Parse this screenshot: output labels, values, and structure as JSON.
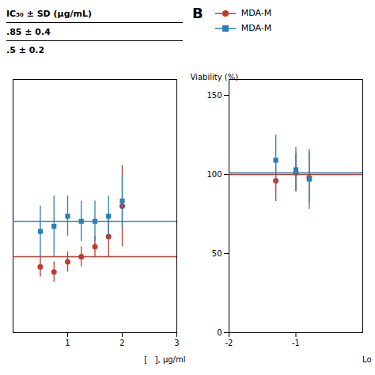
{
  "chart_data": [
    {
      "type": "scatter",
      "xlabel": "[   ], μg/ml",
      "xlim": [
        0,
        3
      ],
      "ylim": [
        0,
        50
      ],
      "xticks": [
        1,
        2,
        3
      ],
      "tick_labels": "x",
      "annotations": [
        "IC₅₀ ± SD (μg/mL)",
        ".85 ± 0.4",
        ".5 ± 0.2"
      ],
      "series": [
        {
          "color": "#c0392b",
          "marker": "circle",
          "x": [
            0.5,
            0.75,
            1.0,
            1.25,
            1.5,
            1.75,
            2.0
          ],
          "values": [
            13,
            12,
            14,
            15,
            17,
            19,
            25
          ],
          "errors": [
            2,
            2,
            2,
            2,
            2,
            4,
            8
          ],
          "fit": 15
        },
        {
          "color": "#2980b9",
          "marker": "square",
          "x": [
            0.5,
            0.75,
            1.0,
            1.25,
            1.5,
            1.75,
            2.0
          ],
          "values": [
            20,
            21,
            23,
            22,
            22,
            23,
            26
          ],
          "errors": [
            5,
            6,
            4,
            4,
            4,
            4,
            5
          ],
          "fit": 22
        }
      ]
    },
    {
      "type": "scatter",
      "xlabel": "Lo",
      "ylabel": "Viability (%)",
      "xlim": [
        -2,
        0
      ],
      "ylim": [
        0,
        160
      ],
      "xticks": [
        -2,
        -1
      ],
      "yticks": [
        0,
        50,
        100,
        150
      ],
      "annotations": [
        "B"
      ],
      "legend": "top",
      "series": [
        {
          "name": "MDA-M",
          "color": "#c0392b",
          "marker": "circle",
          "x": [
            -1.3,
            -1.0,
            -0.8
          ],
          "values": [
            96,
            101,
            98
          ],
          "errors": [
            13,
            12,
            16
          ],
          "fit": 100
        },
        {
          "name": "MDA-M",
          "color": "#2980b9",
          "marker": "square",
          "x": [
            -1.3,
            -1.0,
            -0.8
          ],
          "values": [
            109,
            103,
            97
          ],
          "errors": [
            16,
            14,
            19
          ],
          "fit": 101
        }
      ]
    }
  ]
}
